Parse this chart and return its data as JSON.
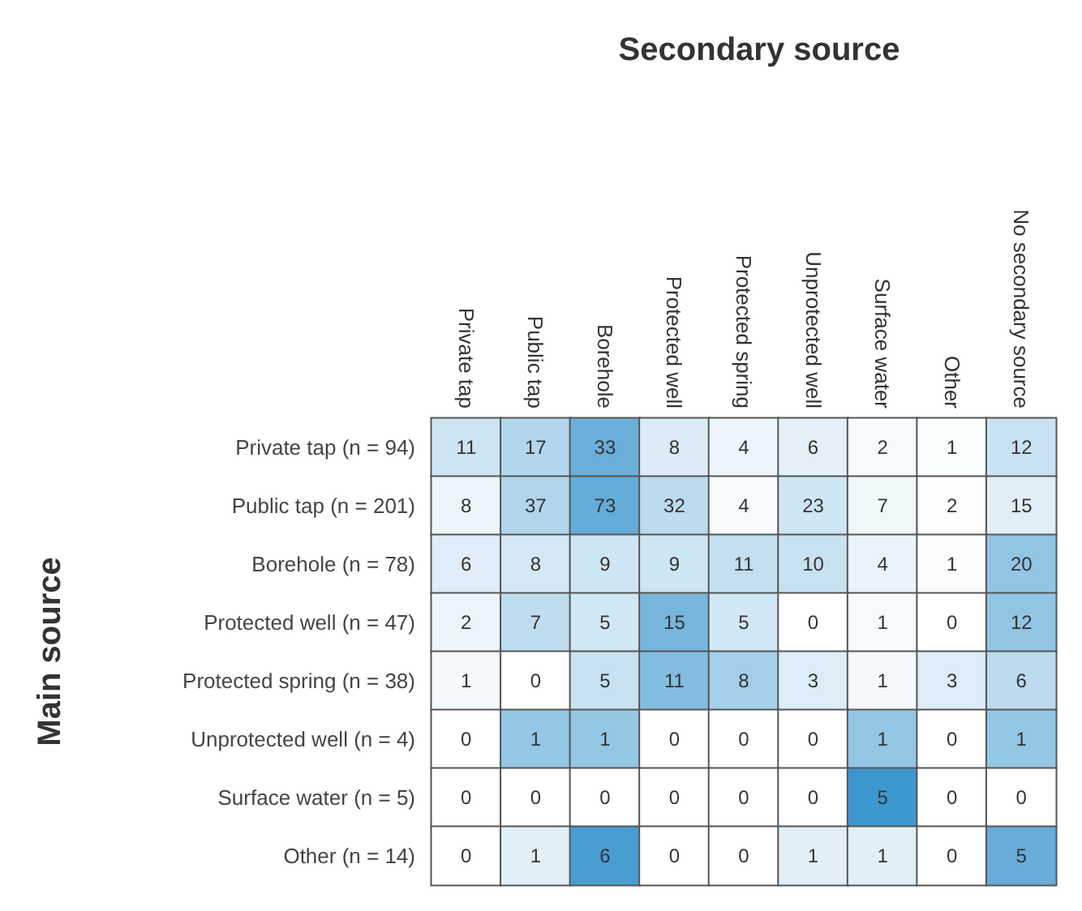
{
  "chart_data": {
    "type": "heatmap",
    "title": "Secondary source",
    "ylabel": "Main source",
    "categories": [
      "Private tap",
      "Public tap",
      "Borehole",
      "Protected well",
      "Protected spring",
      "Unprotected well",
      "Surface water",
      "Other",
      "No secondary source"
    ],
    "y_categories": [
      "Private tap (n = 94)",
      "Public tap (n = 201)",
      "Borehole (n = 78)",
      "Protected well (n = 47)",
      "Protected spring (n = 38)",
      "Unprotected well (n = 4)",
      "Surface water (n = 5)",
      "Other (n = 14)"
    ],
    "cells": [
      [
        11,
        17,
        33,
        8,
        4,
        6,
        2,
        1,
        12
      ],
      [
        8,
        37,
        73,
        32,
        4,
        23,
        7,
        2,
        15
      ],
      [
        6,
        8,
        9,
        9,
        11,
        10,
        4,
        1,
        20
      ],
      [
        2,
        7,
        5,
        15,
        5,
        0,
        1,
        0,
        12
      ],
      [
        1,
        0,
        5,
        11,
        8,
        3,
        1,
        3,
        6
      ],
      [
        0,
        1,
        1,
        0,
        0,
        0,
        1,
        0,
        1
      ],
      [
        0,
        0,
        0,
        0,
        0,
        0,
        5,
        0,
        0
      ],
      [
        0,
        1,
        6,
        0,
        0,
        1,
        1,
        0,
        5
      ]
    ],
    "color": "#3d97cf",
    "data_labels": true
  }
}
